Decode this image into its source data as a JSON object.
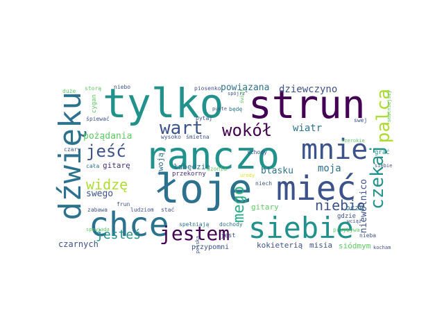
{
  "colors": {
    "dark_purple": "#440154",
    "indigo": "#472d7b",
    "blue": "#3b528b",
    "slate_blue": "#2c728e",
    "teal": "#21918c",
    "green_teal": "#28ae80",
    "green": "#5ec962",
    "light_green": "#addc30",
    "yellow": "#dde318"
  },
  "cloud": {
    "words": [
      {
        "text": "tylko",
        "color": "#21918c"
      },
      {
        "text": "strun",
        "color": "#440154"
      },
      {
        "text": "ranczo",
        "color": "#21918c"
      },
      {
        "text": "łoje",
        "color": "#2c728e"
      },
      {
        "text": "mieć",
        "color": "#3b528b"
      },
      {
        "text": "dźwięku",
        "color": "#2c728e"
      },
      {
        "text": "chce",
        "color": "#2c728e"
      },
      {
        "text": "mnie",
        "color": "#3b528b"
      },
      {
        "text": "siebie",
        "color": "#21918c"
      },
      {
        "text": "jestem",
        "color": "#440154"
      },
      {
        "text": "czekaj",
        "color": "#21918c"
      },
      {
        "text": "palca",
        "color": "#addc30"
      },
      {
        "text": "wokół",
        "color": "#440154"
      },
      {
        "text": "wart",
        "color": "#3b528b"
      },
      {
        "text": "jeść",
        "color": "#3b528b"
      },
      {
        "text": "mego",
        "color": "#28ae80"
      },
      {
        "text": "widzę",
        "color": "#addc30"
      },
      {
        "text": "niebie",
        "color": "#3b528b"
      },
      {
        "text": "jesteś",
        "color": "#21918c"
      },
      {
        "text": "dziewczyno",
        "color": "#3b528b"
      },
      {
        "text": "powiązana",
        "color": "#2c728e"
      },
      {
        "text": "pożądania",
        "color": "#5ec962"
      },
      {
        "text": "wiatr",
        "color": "#2c728e"
      },
      {
        "text": "moja",
        "color": "#2c728e"
      },
      {
        "text": "blasku",
        "color": "#2c728e"
      },
      {
        "text": "swego",
        "color": "#3b528b"
      },
      {
        "text": "gitarę",
        "color": "#472d7b"
      },
      {
        "text": "twoją",
        "color": "#2c728e"
      },
      {
        "text": "łabędzie",
        "color": "#2c728e"
      },
      {
        "text": "przekorny",
        "color": "#472d7b"
      },
      {
        "text": "niewolnico",
        "color": "#3b528b"
      },
      {
        "text": "czarnych",
        "color": "#3b528b"
      },
      {
        "text": "kokieterią",
        "color": "#3b528b"
      },
      {
        "text": "misia",
        "color": "#3b528b"
      },
      {
        "text": "siódmym",
        "color": "#5ec962"
      },
      {
        "text": "przypomni",
        "color": "#3b528b"
      },
      {
        "text": "gitary",
        "color": "#5ec962"
      },
      {
        "text": "oczu",
        "color": "#2c728e"
      },
      {
        "text": "gdzie",
        "color": "#3b528b"
      },
      {
        "text": "niech",
        "color": "#3b528b"
      },
      {
        "text": "schody",
        "color": "#3b528b"
      },
      {
        "text": "jest",
        "color": "#3b528b"
      },
      {
        "text": "dochody",
        "color": "#2c728e"
      },
      {
        "text": "spełniają",
        "color": "#2c728e"
      },
      {
        "text": "ludziom",
        "color": "#3b528b"
      },
      {
        "text": "stać",
        "color": "#3b528b"
      },
      {
        "text": "frun",
        "color": "#3b528b"
      },
      {
        "text": "zabawa",
        "color": "#3b528b"
      },
      {
        "text": "cała",
        "color": "#2c728e"
      },
      {
        "text": "czary",
        "color": "#3b528b"
      },
      {
        "text": "cygan",
        "color": "#5ec962"
      },
      {
        "text": "śpiewać",
        "color": "#3b528b"
      },
      {
        "text": "niebo",
        "color": "#3b528b"
      },
      {
        "text": "piosenko",
        "color": "#3b528b"
      },
      {
        "text": "spójrz",
        "color": "#3b528b"
      },
      {
        "text": "będę",
        "color": "#2c728e"
      },
      {
        "text": "pytaj",
        "color": "#3b528b"
      },
      {
        "text": "wysoko",
        "color": "#3b528b"
      },
      {
        "text": "śmietna",
        "color": "#3b528b"
      },
      {
        "text": "swej",
        "color": "#3b528b"
      },
      {
        "text": "grać",
        "color": "#21918c"
      },
      {
        "text": "siebie",
        "color": "#3b528b"
      },
      {
        "text": "nieba",
        "color": "#3b528b"
      },
      {
        "text": "przybywa",
        "color": "#5ec962"
      },
      {
        "text": "wciąż",
        "color": "#3b528b"
      },
      {
        "text": "dzonia",
        "color": "#5ec962"
      },
      {
        "text": "polska",
        "color": "#3b528b"
      },
      {
        "text": "puste",
        "color": "#3b528b"
      },
      {
        "text": "świat",
        "color": "#5ec962"
      },
      {
        "text": "kocham",
        "color": "#3b528b"
      },
      {
        "text": "duże",
        "color": "#5ec962"
      },
      {
        "text": "storą",
        "color": "#5ec962"
      },
      {
        "text": "smutniejszy",
        "color": "#5ec962"
      },
      {
        "text": "spowiada",
        "color": "#5ec962"
      },
      {
        "text": "urody",
        "color": "#dde318"
      },
      {
        "text": "szerokie",
        "color": "#5ec962"
      }
    ]
  }
}
